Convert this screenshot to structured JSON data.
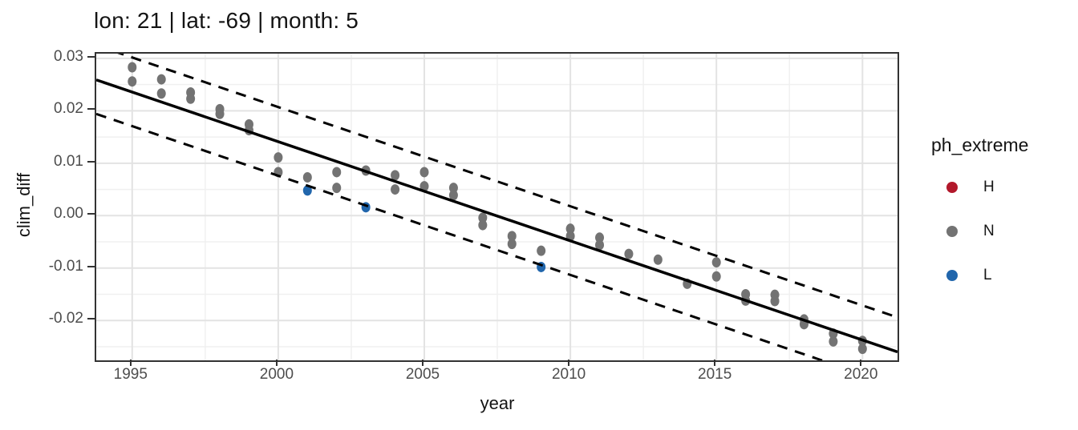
{
  "title": "lon: 21 | lat: -69 | month: 5",
  "axes": {
    "x_label": "year",
    "y_label": "clim_diff"
  },
  "legend": {
    "title": "ph_extreme",
    "items": [
      {
        "label": "H",
        "color": "#B2182B"
      },
      {
        "label": "N",
        "color": "#737373"
      },
      {
        "label": "L",
        "color": "#2166AC"
      }
    ]
  },
  "colors": {
    "panel_border": "#333333",
    "tick_mark": "#333333",
    "tick_label": "#4d4d4d",
    "grid_major": "#e3e3e3",
    "grid_minor": "#f0f0f0",
    "fit_line": "#000000"
  },
  "chart_data": {
    "type": "scatter",
    "title": "lon: 21 | lat: -69 | month: 5",
    "xlabel": "year",
    "ylabel": "clim_diff",
    "xlim": [
      1993.77,
      2021.2
    ],
    "ylim": [
      -0.0276,
      0.0309
    ],
    "x_major_ticks": [
      1995,
      2000,
      2005,
      2010,
      2015,
      2020
    ],
    "x_minor_gridlines": [
      1997.5,
      2002.5,
      2007.5,
      2012.5,
      2017.5
    ],
    "y_major_ticks": [
      0.03,
      0.02,
      0.01,
      0.0,
      -0.01,
      -0.02
    ],
    "y_minor_gridlines": [
      0.025,
      0.015,
      0.005,
      -0.005,
      -0.015,
      -0.025
    ],
    "grid": true,
    "legend_title": "ph_extreme",
    "legend_position": "right",
    "series": [
      {
        "name": "H",
        "color": "#B2182B",
        "points": []
      },
      {
        "name": "N",
        "color": "#737373",
        "points": [
          [
            1995,
            0.0283
          ],
          [
            1995,
            0.0256
          ],
          [
            1996,
            0.026
          ],
          [
            1996,
            0.0233
          ],
          [
            1997,
            0.0235
          ],
          [
            1997,
            0.0223
          ],
          [
            1998,
            0.0203
          ],
          [
            1998,
            0.0194
          ],
          [
            1999,
            0.0174
          ],
          [
            1999,
            0.0163
          ],
          [
            2000,
            0.0111
          ],
          [
            2000,
            0.0083
          ],
          [
            2001,
            0.0073
          ],
          [
            2002,
            0.0083
          ],
          [
            2002,
            0.0053
          ],
          [
            2003,
            0.0086
          ],
          [
            2004,
            0.0077
          ],
          [
            2004,
            0.005
          ],
          [
            2005,
            0.0083
          ],
          [
            2005,
            0.0056
          ],
          [
            2006,
            0.0053
          ],
          [
            2006,
            0.0039
          ],
          [
            2007,
            -0.0004
          ],
          [
            2007,
            -0.0018
          ],
          [
            2008,
            -0.0039
          ],
          [
            2008,
            -0.0054
          ],
          [
            2009,
            -0.0067
          ],
          [
            2010,
            -0.0025
          ],
          [
            2010,
            -0.0039
          ],
          [
            2011,
            -0.0042
          ],
          [
            2011,
            -0.0056
          ],
          [
            2012,
            -0.0073
          ],
          [
            2013,
            -0.0084
          ],
          [
            2014,
            -0.013
          ],
          [
            2015,
            -0.0089
          ],
          [
            2015,
            -0.0116
          ],
          [
            2016,
            -0.015
          ],
          [
            2016,
            -0.0162
          ],
          [
            2017,
            -0.0151
          ],
          [
            2017,
            -0.0163
          ],
          [
            2018,
            -0.0198
          ],
          [
            2018,
            -0.0207
          ],
          [
            2019,
            -0.0225
          ],
          [
            2019,
            -0.024
          ],
          [
            2020,
            -0.0239
          ],
          [
            2020,
            -0.0254
          ]
        ]
      },
      {
        "name": "L",
        "color": "#2166AC",
        "points": [
          [
            2001,
            0.0048
          ],
          [
            2003,
            0.0016
          ],
          [
            2009,
            -0.0098
          ]
        ]
      }
    ],
    "fit_line": {
      "x": [
        1993.77,
        2021.2
      ],
      "y": [
        0.0259,
        -0.026
      ],
      "style": "solid"
    },
    "interval_bands": [
      {
        "offset": 0.0066,
        "style": "dashed"
      },
      {
        "offset": -0.0065,
        "style": "dashed"
      }
    ]
  }
}
